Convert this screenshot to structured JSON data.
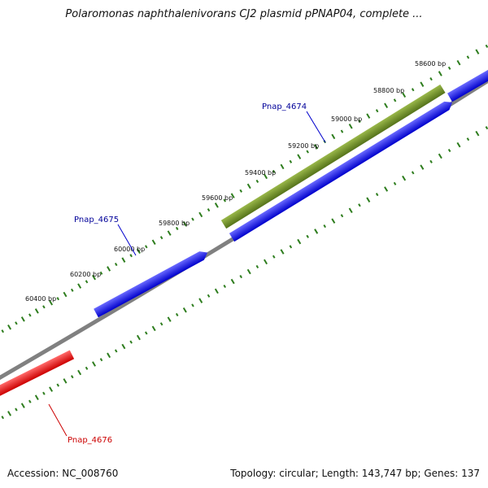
{
  "title": "Polaromonas naphthalenivorans CJ2 plasmid pPNAP04, complete ...",
  "footer": {
    "accession": "Accession: NC_008760",
    "summary": "Topology: circular; Length: 143,747 bp; Genes: 137"
  },
  "colors": {
    "backbone": "#808080",
    "tick": "#2e7d1e",
    "forward_gene": "#0000ee",
    "reverse_gene": "#ee0000",
    "other_gene": "#6b8e23",
    "label_blue": "#000099",
    "label_red": "#cc0000"
  },
  "ruler": {
    "labels": [
      "58600 bp",
      "58800 bp",
      "59000 bp",
      "59200 bp",
      "59400 bp",
      "59600 bp",
      "59800 bp",
      "60000 bp",
      "60200 bp",
      "60400 bp"
    ]
  },
  "genes": [
    {
      "name": "Pnap_4674",
      "strand": "forward-upper",
      "color_key": "other_gene"
    },
    {
      "name": "Pnap_4675",
      "strand": "forward",
      "color_key": "forward_gene"
    },
    {
      "name": "Pnap_4676",
      "strand": "reverse",
      "color_key": "reverse_gene"
    }
  ]
}
